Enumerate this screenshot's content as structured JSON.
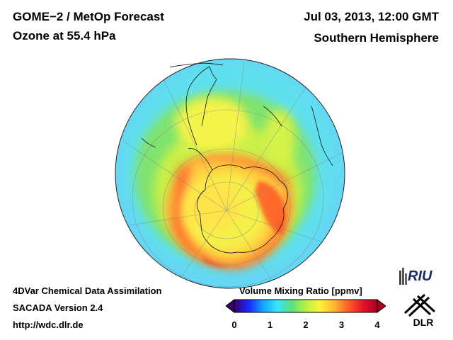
{
  "header": {
    "title": "GOME−2 / MetOp Forecast",
    "subtitle": "Ozone at 55.4 hPa",
    "date": "Jul 03, 2013, 12:00 GMT",
    "region": "Southern Hemisphere"
  },
  "footer": {
    "line1": "4DVar Chemical Data Assimilation",
    "line2": "SACADA Version 2.4",
    "line3": "http://wdc.dlr.de"
  },
  "colorbar": {
    "title": "Volume Mixing Ratio [ppmv]",
    "ticks": [
      "0",
      "1",
      "2",
      "3",
      "4"
    ],
    "min": 0,
    "max": 4,
    "colors": [
      "#3a0069",
      "#1a26ff",
      "#13a3ff",
      "#36e5ff",
      "#5de07a",
      "#b9f043",
      "#fff23c",
      "#ffb432",
      "#ff5a28",
      "#e3142a",
      "#a60022"
    ]
  },
  "logos": {
    "riu": "RIU",
    "dlr": "DLR"
  },
  "map": {
    "projection": "orthographic",
    "center": "South Pole",
    "ocean_background": "#8fe7ff"
  }
}
